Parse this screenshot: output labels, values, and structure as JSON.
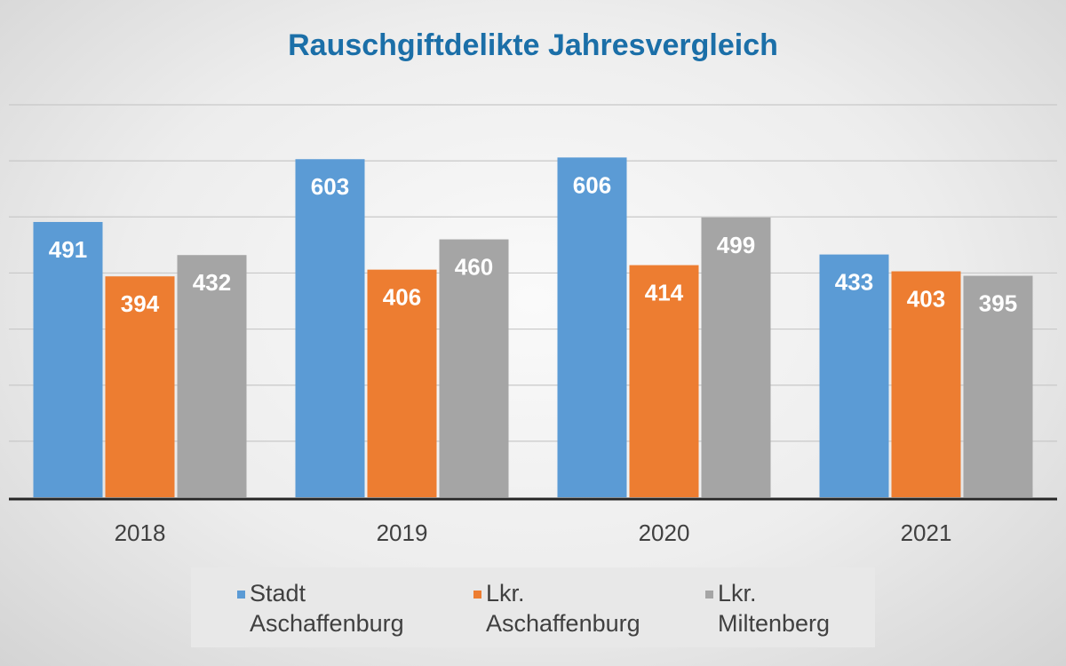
{
  "chart_data": {
    "type": "bar",
    "title": "Rauschgiftdelikte Jahresvergleich",
    "categories": [
      "2018",
      "2019",
      "2020",
      "2021"
    ],
    "series": [
      {
        "name": "Stadt Aschaffenburg",
        "name_lines": [
          "Stadt",
          "Aschaffenburg"
        ],
        "values": [
          491,
          603,
          606,
          433
        ],
        "color": "#5b9bd5"
      },
      {
        "name": "Lkr. Aschaffenburg",
        "name_lines": [
          "Lkr.",
          "Aschaffenburg"
        ],
        "values": [
          394,
          406,
          414,
          403
        ],
        "color": "#ed7d31"
      },
      {
        "name": "Lkr. Miltenberg",
        "name_lines": [
          "Lkr.",
          "Miltenberg"
        ],
        "values": [
          432,
          460,
          499,
          395
        ],
        "color": "#a5a5a5"
      }
    ],
    "ylim": [
      0,
      700
    ],
    "grid": true,
    "legend_position": "bottom",
    "xlabel": "",
    "ylabel": "",
    "title_color": "#1b6fa8"
  }
}
